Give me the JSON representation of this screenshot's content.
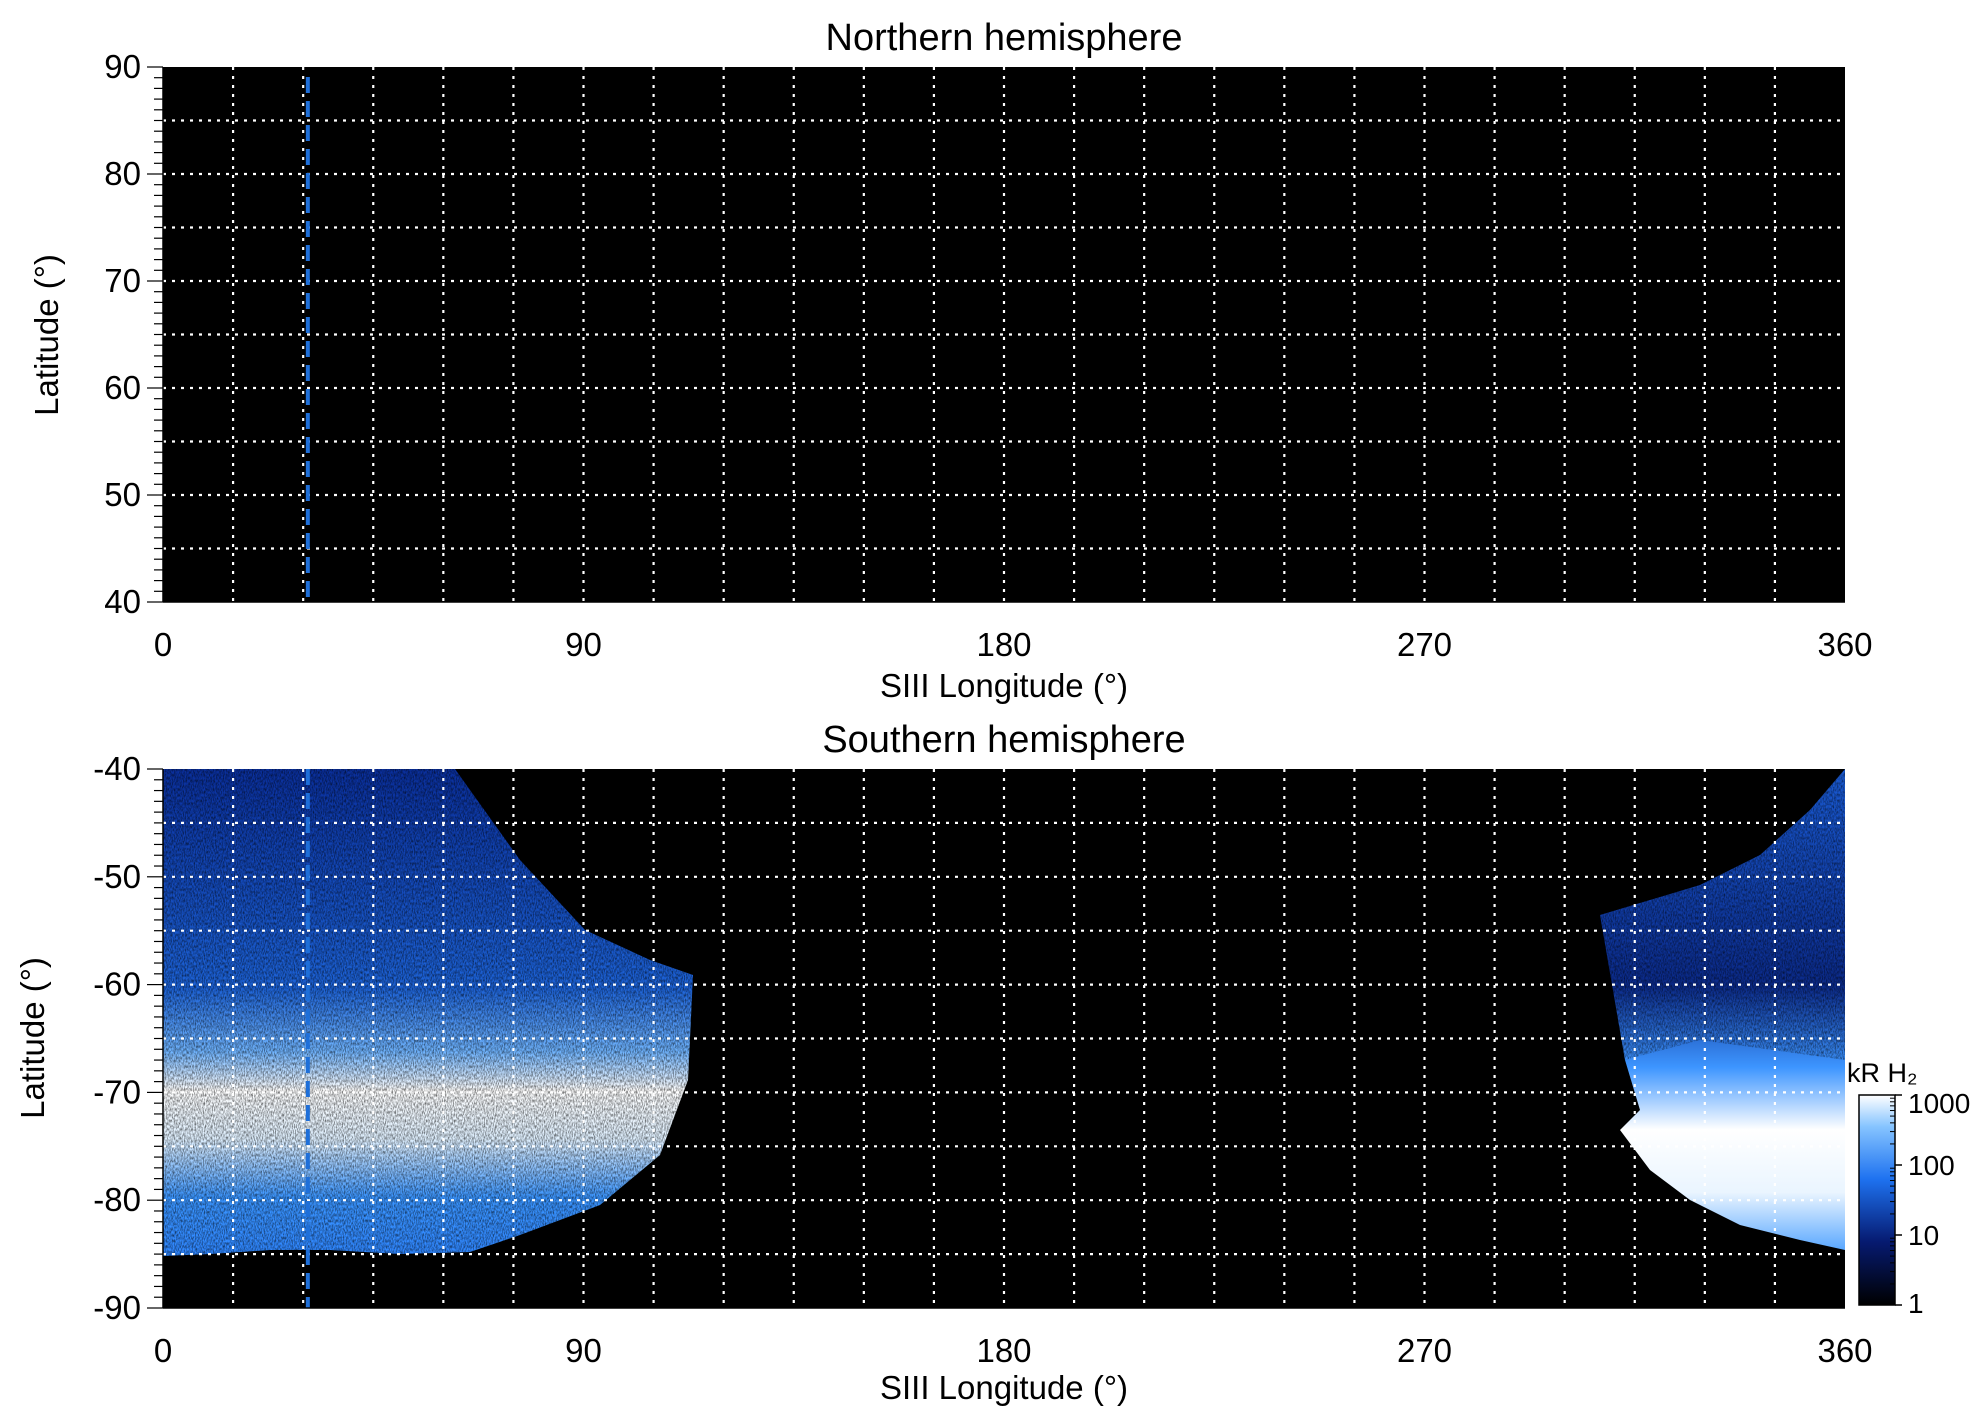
{
  "panels": [
    {
      "id": "north",
      "title": "Northern hemisphere",
      "xlabel": "SIII Longitude (°)",
      "ylabel": "Latitude (°)",
      "xticks": [
        "0",
        "90",
        "180",
        "270",
        "360"
      ],
      "yticks": [
        "90",
        "80",
        "70",
        "60",
        "50",
        "40"
      ]
    },
    {
      "id": "south",
      "title": "Southern hemisphere",
      "xlabel": "SIII Longitude (°)",
      "ylabel": "Latitude (°)",
      "xticks": [
        "0",
        "90",
        "180",
        "270",
        "360"
      ],
      "yticks": [
        "-40",
        "-50",
        "-60",
        "-70",
        "-80",
        "-90"
      ]
    }
  ],
  "colorbar": {
    "label": "kR H₂",
    "ticks": [
      "1000",
      "100",
      "10",
      "1"
    ]
  },
  "colors": {
    "background_map": "#000000",
    "grid": "#ffffff",
    "reference_line": "#1e6fd9",
    "emission_low": "#0a2a8a",
    "emission_mid": "#2a86ff",
    "emission_high": "#ffffff"
  },
  "chart_data": [
    {
      "type": "heatmap",
      "title": "Northern hemisphere",
      "xlabel": "SIII Longitude (°)",
      "ylabel": "Latitude (°)",
      "xlim": [
        0,
        360
      ],
      "ylim": [
        40,
        90
      ],
      "grid": true,
      "grid_x_step": 15,
      "grid_y_step": 5,
      "reference_longitude": 31,
      "emission": "none"
    },
    {
      "type": "heatmap",
      "title": "Southern hemisphere",
      "xlabel": "SIII Longitude (°)",
      "ylabel": "Latitude (°)",
      "xlim": [
        0,
        360
      ],
      "ylim": [
        -90,
        -40
      ],
      "grid": true,
      "grid_x_step": 15,
      "grid_y_step": 5,
      "reference_longitude": 31,
      "colorbar_scale": "log",
      "colorbar_range": [
        1,
        1000
      ],
      "colorbar_unit": "kR H₂",
      "emission_regions": [
        {
          "lon_range": [
            0,
            113
          ],
          "lat_range": [
            -86,
            -40
          ],
          "auroral_oval_lat": [
            -77,
            -69
          ],
          "oval_peak_kR": 1000,
          "background_kR": 30
        },
        {
          "lon_range": [
            308,
            360
          ],
          "lat_range": [
            -85,
            -40
          ],
          "auroral_oval_lat": [
            -82,
            -70
          ],
          "oval_peak_kR": 1000,
          "background_kR": 30
        }
      ]
    }
  ]
}
